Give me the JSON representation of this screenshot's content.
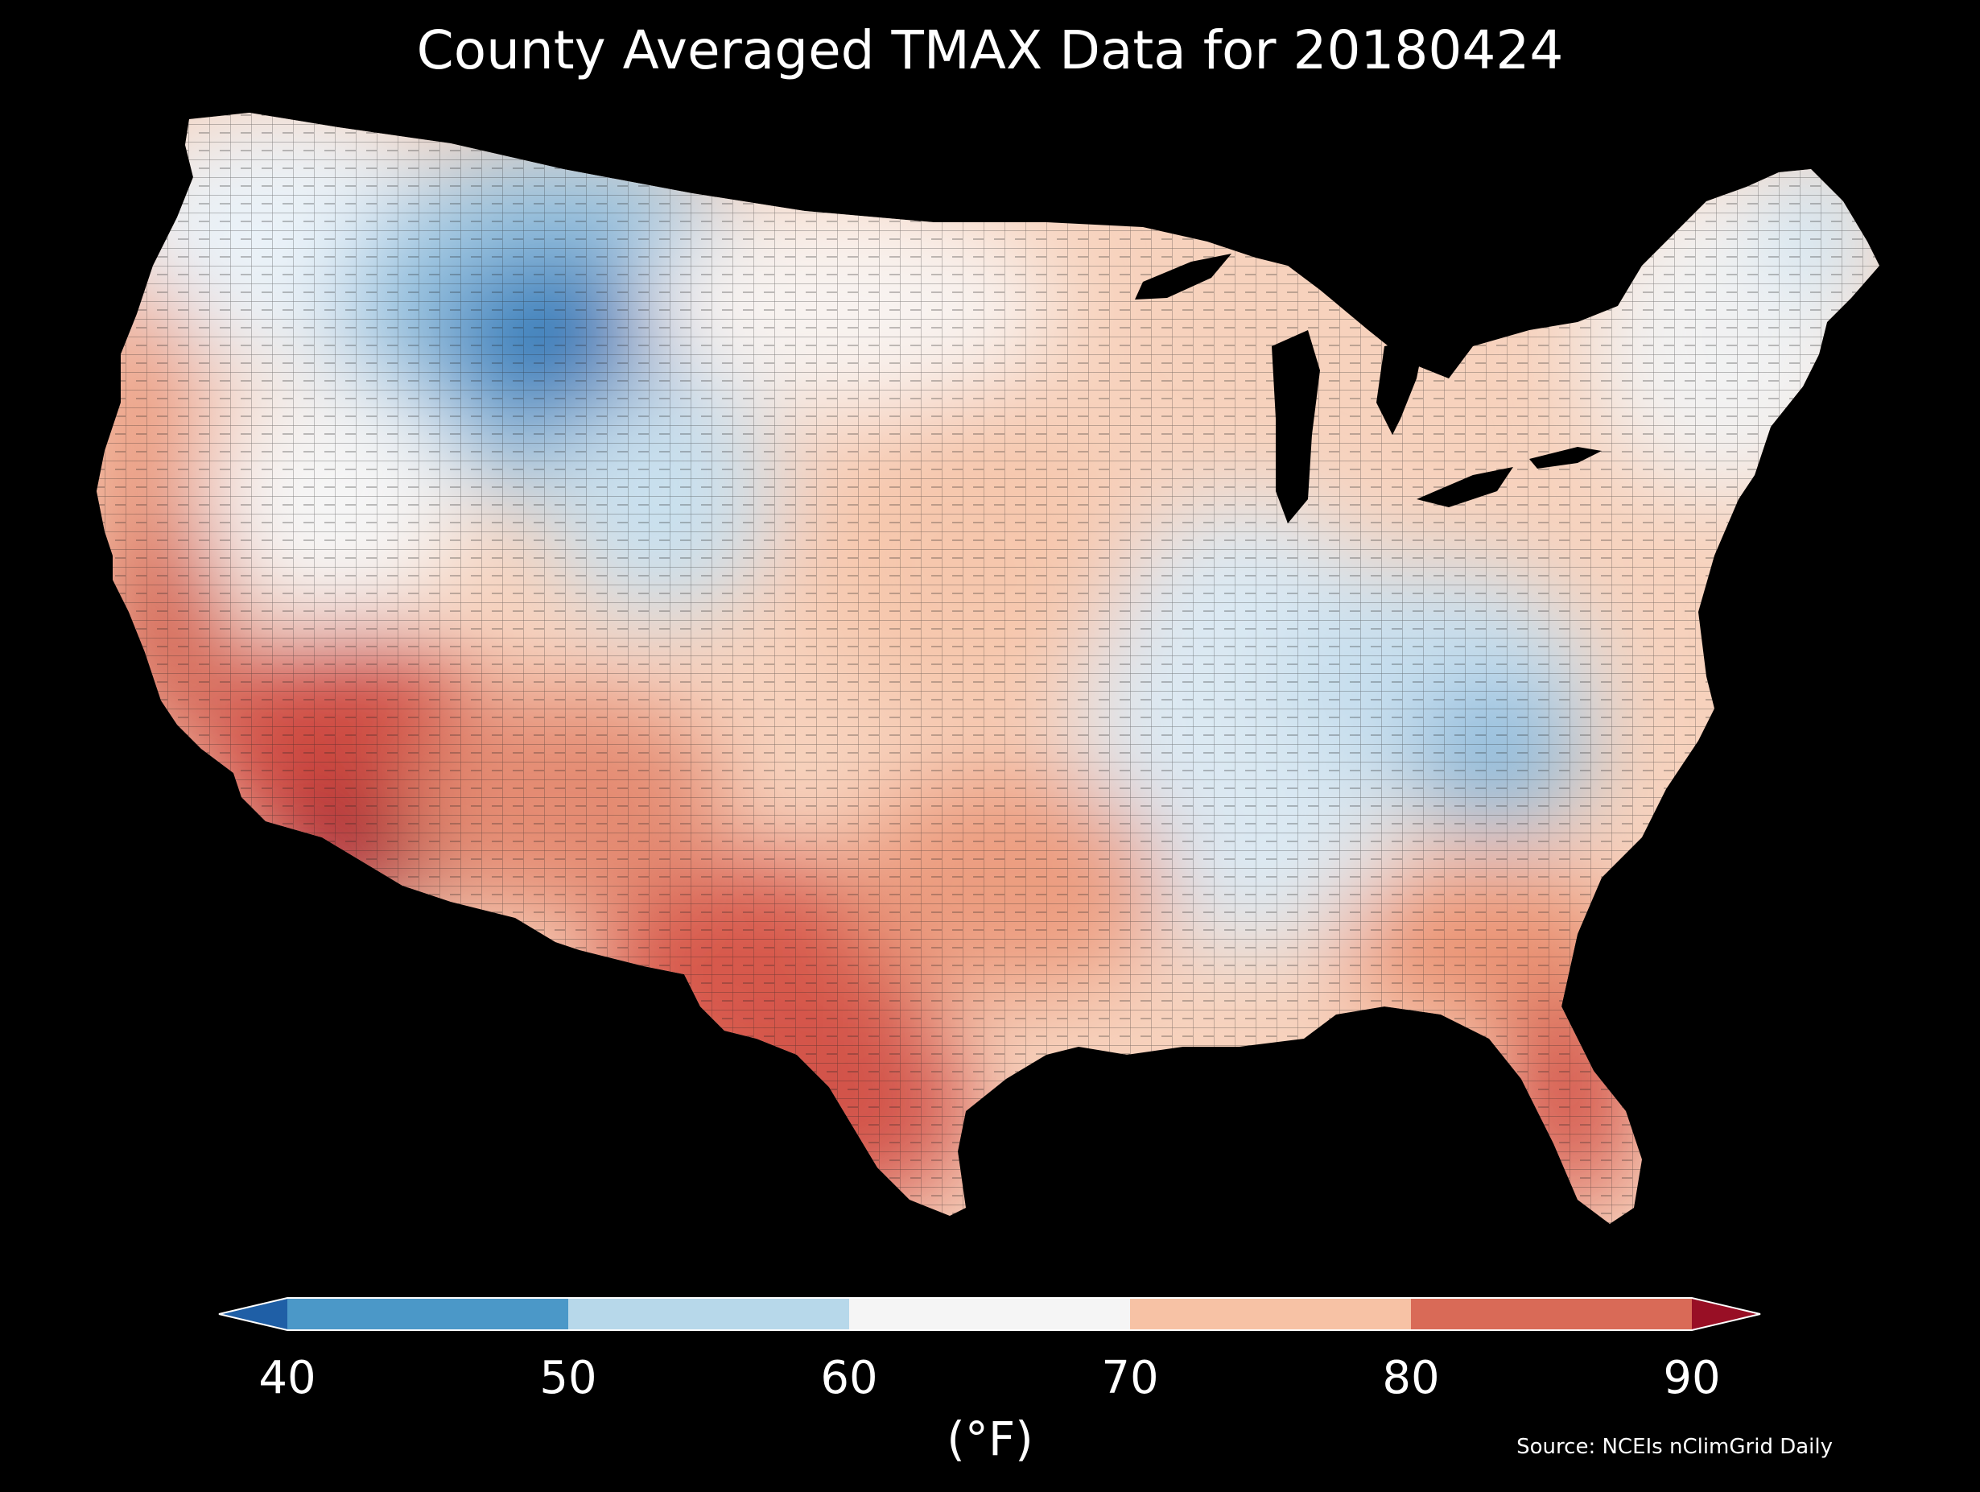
{
  "map": {
    "title": "County Averaged TMAX Data for 20180424",
    "legend": {
      "unit_label": "(°F)",
      "ticks": [
        "40",
        "50",
        "60",
        "70",
        "80",
        "90"
      ],
      "bins": [
        {
          "range": "<40",
          "color": "#1f5fa6"
        },
        {
          "range": "40-50",
          "color": "#4b98c8"
        },
        {
          "range": "50-60",
          "color": "#b7d8ea"
        },
        {
          "range": "60-70",
          "color": "#f5f5f5"
        },
        {
          "range": "70-80",
          "color": "#f7c2a5"
        },
        {
          "range": "80-90",
          "color": "#d96a57"
        },
        {
          "range": ">90",
          "color": "#980f25"
        }
      ]
    },
    "source": "Source: NCEIs nClimGrid Daily"
  }
}
